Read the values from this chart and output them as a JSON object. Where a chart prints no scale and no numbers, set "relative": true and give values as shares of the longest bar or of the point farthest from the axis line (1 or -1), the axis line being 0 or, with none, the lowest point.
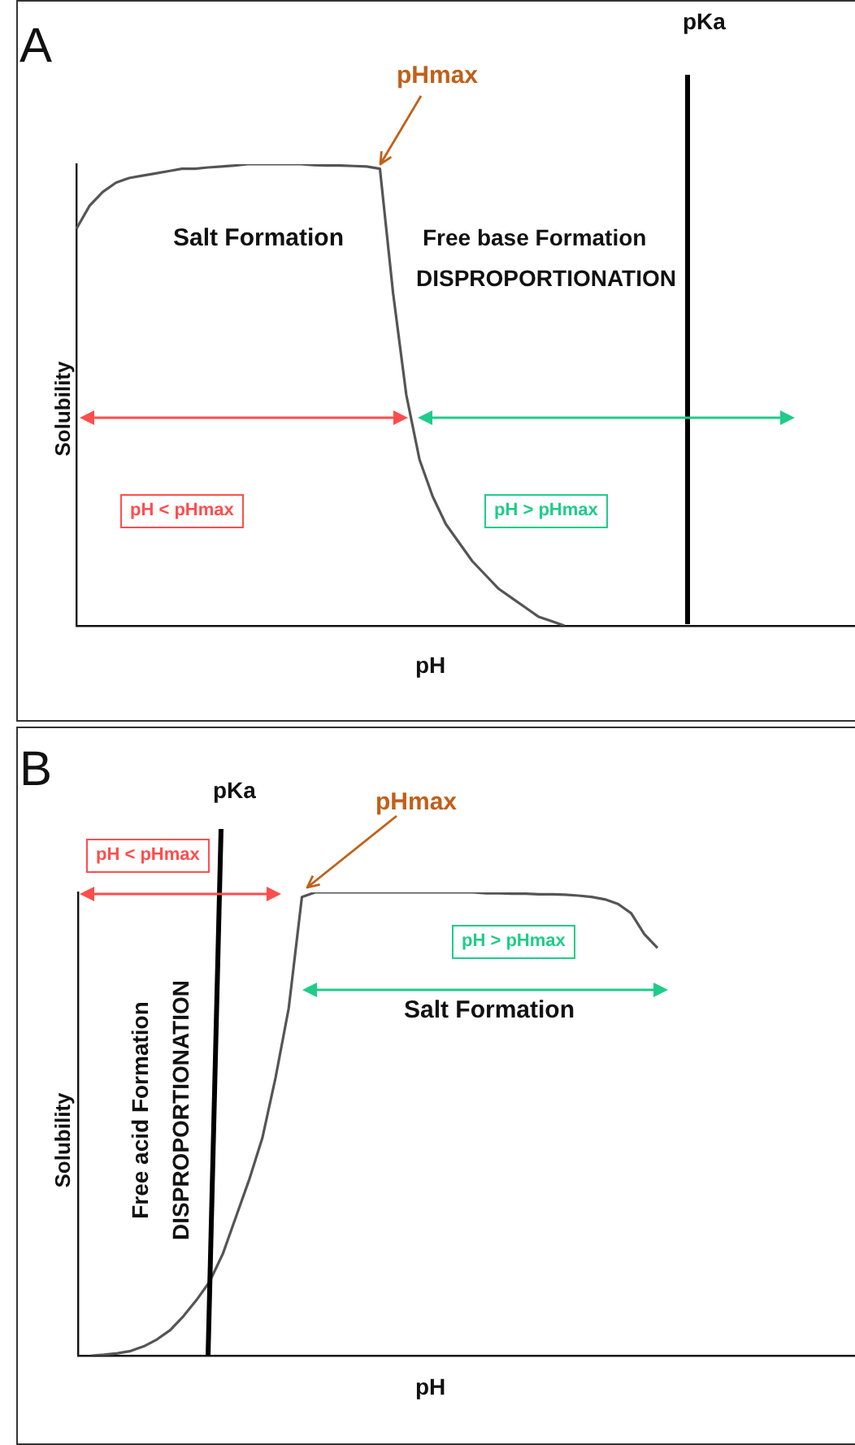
{
  "chart_data": [
    {
      "type": "line",
      "title": "A",
      "xlabel": "pH",
      "ylabel": "Solubility",
      "relative": true,
      "marker": "none",
      "categories": [
        null,
        null,
        null,
        null,
        null,
        null,
        null,
        null,
        null,
        null,
        null,
        null,
        null,
        null,
        null,
        null,
        null,
        null,
        null,
        null,
        null,
        null,
        null,
        null,
        null,
        null,
        null,
        null,
        null,
        null,
        null,
        null,
        null,
        null,
        null,
        null,
        null,
        null,
        null,
        null,
        null,
        null,
        null,
        null,
        null,
        null,
        null,
        null,
        null,
        null,
        null,
        null,
        null,
        null,
        null,
        null,
        null,
        null,
        null,
        null
      ],
      "series": [
        {
          "color": "#555555",
          "values": [
            0.86,
            0.91,
            0.94,
            0.96,
            0.97,
            0.975,
            0.98,
            0.985,
            0.99,
            0.99,
            0.993,
            0.995,
            0.997,
            1,
            1,
            1,
            1,
            1,
            0.998,
            0.997,
            0.997,
            0.996,
            0.995,
            0.99,
            0.72,
            0.5,
            0.36,
            0.28,
            0.22,
            0.18,
            0.14,
            0.11,
            0.08,
            0.06,
            0.04,
            0.02,
            0.01,
            0,
            null,
            null,
            null,
            null,
            null,
            null,
            null,
            null,
            null,
            null,
            null,
            null,
            null,
            null,
            null,
            null,
            null,
            null,
            null,
            null,
            null,
            null
          ]
        }
      ],
      "annotations": [
        "pHmax",
        "Salt Formation",
        "Free base Formation",
        "DISPROPORTIONATION",
        "pKa",
        "pH < pHmax",
        "pH > pHmax"
      ]
    },
    {
      "type": "line",
      "title": "B",
      "xlabel": "pH",
      "ylabel": "Solubility",
      "relative": true,
      "marker": "none",
      "categories": [
        null,
        null,
        null,
        null,
        null,
        null,
        null,
        null,
        null,
        null,
        null,
        null,
        null,
        null,
        null,
        null,
        null,
        null,
        null,
        null,
        null,
        null,
        null,
        null,
        null,
        null,
        null,
        null,
        null,
        null,
        null,
        null,
        null,
        null,
        null,
        null,
        null,
        null,
        null,
        null,
        null,
        null,
        null,
        null,
        null,
        null,
        null,
        null,
        null,
        null,
        null,
        null,
        null,
        null,
        null,
        null,
        null,
        null,
        null,
        null
      ],
      "series": [
        {
          "color": "#555555",
          "values": [
            null,
            0,
            0.002,
            0.005,
            0.01,
            0.02,
            0.035,
            0.055,
            0.085,
            0.12,
            0.16,
            0.22,
            0.3,
            0.38,
            0.47,
            0.6,
            0.75,
            0.99,
            1,
            1,
            1,
            1,
            1,
            1,
            1,
            1,
            1,
            1,
            1,
            1,
            1,
            0.998,
            0.998,
            0.997,
            0.997,
            0.996,
            0.996,
            0.995,
            0.993,
            0.99,
            0.985,
            0.975,
            0.955,
            0.91,
            0.88,
            null,
            null,
            null,
            null,
            null,
            null,
            null,
            null,
            null,
            null,
            null,
            null,
            null,
            null,
            null
          ]
        }
      ],
      "annotations": [
        "pHmax",
        "Salt Formation",
        "Free acid Formation",
        "DISPROPORTIONATION",
        "pKa",
        "pH < pHmax",
        "pH > pHmax"
      ]
    }
  ]
}
